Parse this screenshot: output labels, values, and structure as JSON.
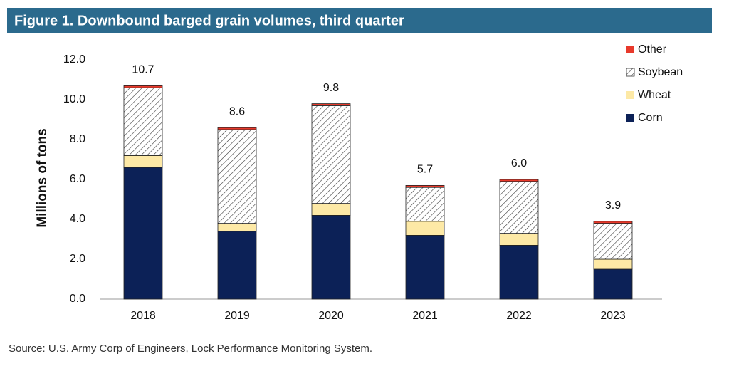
{
  "chart_data": {
    "type": "stacked-bar",
    "title": "Figure 1. Downbound barged grain volumes, third quarter",
    "y_label": "Millions of tons",
    "source": "Source: U.S. Army Corp of Engineers, Lock Performance Monitoring System.",
    "categories": [
      "2018",
      "2019",
      "2020",
      "2021",
      "2022",
      "2023"
    ],
    "series": [
      {
        "name": "Corn",
        "color": "#0c2157",
        "values": [
          6.6,
          3.4,
          4.2,
          3.2,
          2.7,
          1.5
        ]
      },
      {
        "name": "Wheat",
        "color": "#fde9a6",
        "values": [
          0.6,
          0.4,
          0.6,
          0.7,
          0.6,
          0.5
        ]
      },
      {
        "name": "Soybean",
        "color": "#ffffff",
        "pattern": "hatch",
        "values": [
          3.4,
          4.7,
          4.9,
          1.7,
          2.6,
          1.8
        ]
      },
      {
        "name": "Other",
        "color": "#e8392b",
        "values": [
          0.1,
          0.1,
          0.1,
          0.1,
          0.1,
          0.1
        ]
      }
    ],
    "totals": [
      10.7,
      8.6,
      9.8,
      5.7,
      6.0,
      3.9
    ],
    "total_labels": [
      "10.7",
      "8.6",
      "9.8",
      "5.7",
      "6.0",
      "3.9"
    ],
    "ylim": [
      0,
      12
    ],
    "yticks": [
      {
        "value": 0,
        "label": "0.0"
      },
      {
        "value": 2,
        "label": "2.0"
      },
      {
        "value": 4,
        "label": "4.0"
      },
      {
        "value": 6,
        "label": "6.0"
      },
      {
        "value": 8,
        "label": "8.0"
      },
      {
        "value": 10,
        "label": "10.0"
      },
      {
        "value": 12,
        "label": "12.0"
      }
    ],
    "legend": "top-right"
  }
}
